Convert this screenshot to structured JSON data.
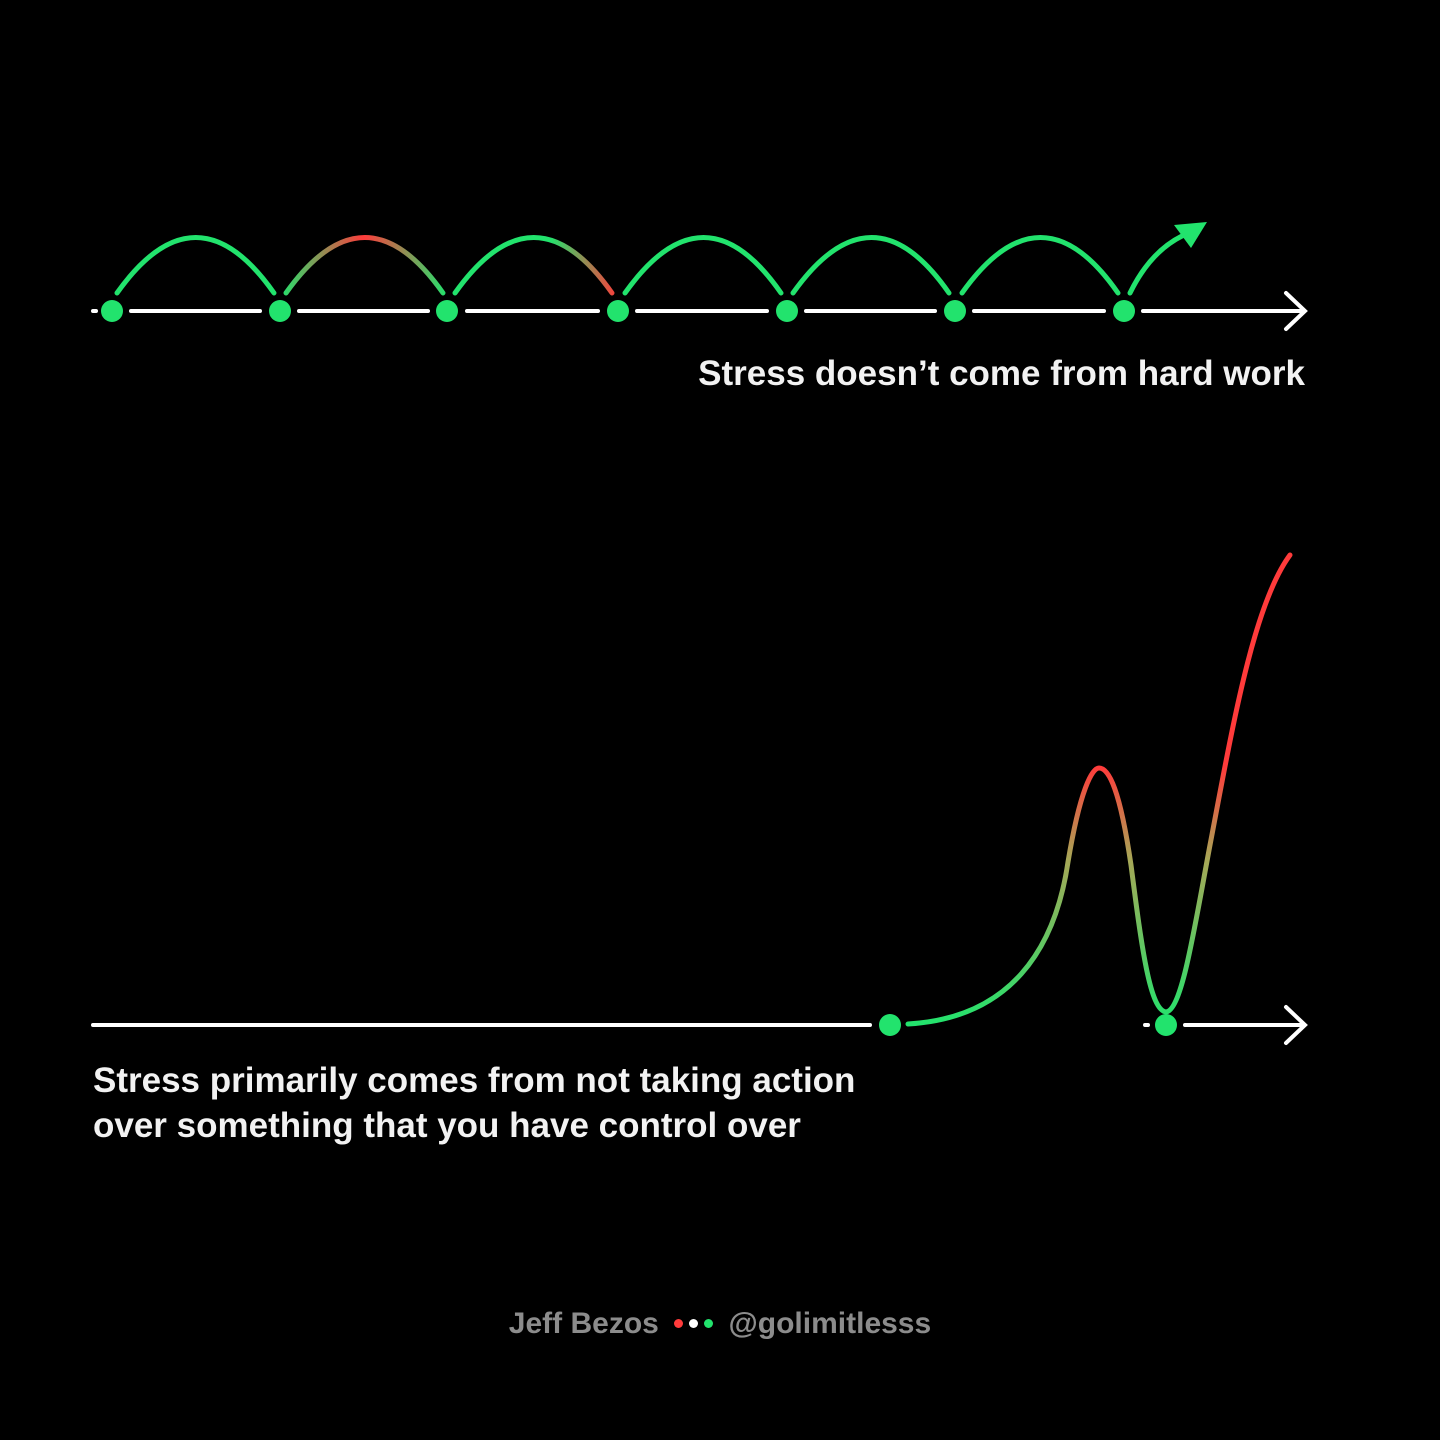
{
  "top_caption": "Stress doesn’t come from hard work",
  "bottom_caption": {
    "line1": "Stress primarily comes from not taking action",
    "line2": "over something that you have control over"
  },
  "footer": {
    "author": "Jeff Bezos",
    "handle": "@golimitlesss",
    "dot_colors": [
      "#ff3b3b",
      "#ffffff",
      "#22e36d"
    ]
  },
  "colors": {
    "background": "#000000",
    "axis": "#ffffff",
    "green": "#22e36d",
    "red": "#ff3b3b"
  }
}
